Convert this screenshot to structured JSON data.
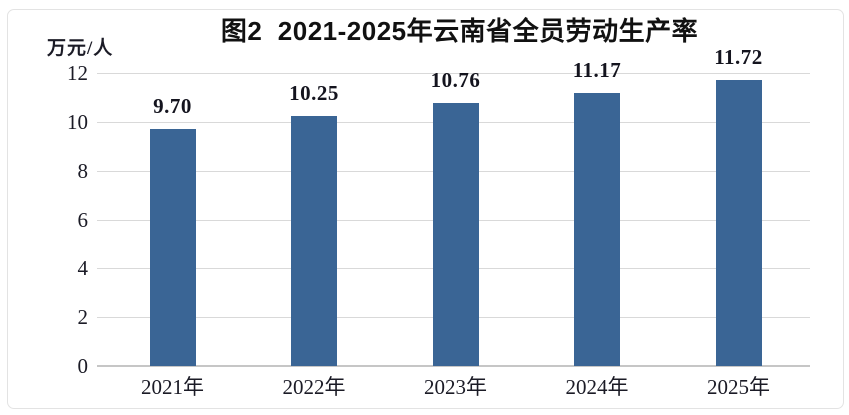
{
  "chart_data": {
    "type": "bar",
    "title": "图2  2021-2025年云南省全员劳动生产率",
    "unit_label": "万元/人",
    "categories": [
      "2021年",
      "2022年",
      "2023年",
      "2024年",
      "2025年"
    ],
    "values": [
      9.7,
      10.25,
      10.76,
      11.17,
      11.72
    ],
    "value_labels": [
      "9.70",
      "10.25",
      "10.76",
      "11.17",
      "11.72"
    ],
    "xlabel": "",
    "ylabel": "万元/人",
    "y_ticks": [
      0,
      2,
      4,
      6,
      8,
      10,
      12
    ],
    "ylim": [
      0,
      12
    ],
    "grid": true,
    "legend": "none",
    "colors": {
      "bar": "#3a6595",
      "gridline": "#d9d9d9",
      "axis_line": "#c6c6c6",
      "text": "#1b1b26",
      "title_text": "#111111",
      "background": "#ffffff",
      "frame_border": "#e3e3e3"
    }
  }
}
